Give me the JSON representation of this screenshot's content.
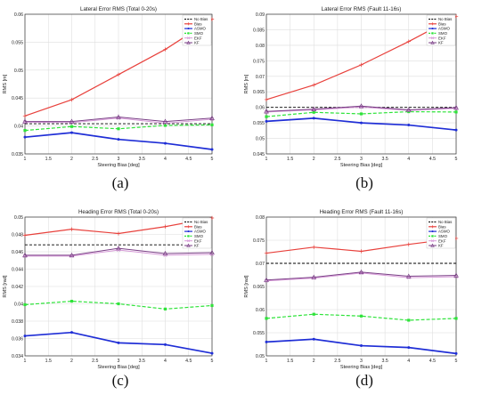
{
  "colors": {
    "No Bias": "#000000",
    "Bias": "#e8413c",
    "ASMO": "#1f2ed6",
    "SMO": "#2ee33a",
    "EKF": "#d79ad8",
    "KF": "#7a3f86"
  },
  "chart_data": [
    {
      "type": "line",
      "title": "Lateral Error RMS (Total 0-20s)",
      "xlabel": "Steering Bias [deg]",
      "ylabel": "RMS [m]",
      "xlim": [
        1,
        5
      ],
      "ylim": [
        0.035,
        0.06
      ],
      "xticks": [
        "1",
        "1.5",
        "2",
        "2.5",
        "3",
        "3.5",
        "4",
        "4.5",
        "5"
      ],
      "yticks": [
        "0.035",
        "0.04",
        "0.045",
        "0.05",
        "0.055",
        "0.06"
      ],
      "grid": true,
      "legend": "top-right",
      "label": "(a)",
      "x": [
        1,
        2,
        3,
        4,
        5
      ],
      "series": [
        {
          "name": "No Bias",
          "values": [
            0.0404,
            0.0404,
            0.0404,
            0.0404,
            0.0404
          ]
        },
        {
          "name": "Bias",
          "values": [
            0.0418,
            0.0447,
            0.0492,
            0.0537,
            0.0591
          ]
        },
        {
          "name": "ASMO",
          "values": [
            0.038,
            0.0388,
            0.0376,
            0.0369,
            0.0358
          ]
        },
        {
          "name": "SMO",
          "values": [
            0.0392,
            0.0399,
            0.0395,
            0.0401,
            0.0402
          ]
        },
        {
          "name": "EKF",
          "values": [
            0.0407,
            0.0406,
            0.0414,
            0.0405,
            0.0412
          ]
        },
        {
          "name": "KF",
          "values": [
            0.0408,
            0.0408,
            0.0416,
            0.0408,
            0.0414
          ]
        }
      ]
    },
    {
      "type": "line",
      "title": "Lateral Error RMS (Fault 11-16s)",
      "xlabel": "Steering Bias [deg]",
      "ylabel": "RMS [m]",
      "xlim": [
        1,
        5
      ],
      "ylim": [
        0.045,
        0.09
      ],
      "xticks": [
        "1",
        "1.5",
        "2",
        "2.5",
        "3",
        "3.5",
        "4",
        "4.5",
        "5"
      ],
      "yticks": [
        "0.045",
        "0.05",
        "0.055",
        "0.06",
        "0.065",
        "0.07",
        "0.075",
        "0.08",
        "0.085",
        "0.09"
      ],
      "grid": true,
      "legend": "top-right",
      "label": "(b)",
      "x": [
        1,
        2,
        3,
        4,
        5
      ],
      "series": [
        {
          "name": "No Bias",
          "values": [
            0.06,
            0.06,
            0.06,
            0.06,
            0.06
          ]
        },
        {
          "name": "Bias",
          "values": [
            0.0625,
            0.0672,
            0.0737,
            0.0812,
            0.0893
          ]
        },
        {
          "name": "ASMO",
          "values": [
            0.0555,
            0.0565,
            0.055,
            0.0543,
            0.0527
          ]
        },
        {
          "name": "SMO",
          "values": [
            0.057,
            0.0584,
            0.0579,
            0.0586,
            0.0585
          ]
        },
        {
          "name": "EKF",
          "values": [
            0.0585,
            0.0592,
            0.0601,
            0.059,
            0.0597
          ]
        },
        {
          "name": "KF",
          "values": [
            0.0587,
            0.0594,
            0.0604,
            0.0592,
            0.0599
          ]
        }
      ]
    },
    {
      "type": "line",
      "title": "Heading Error RMS (Total 0-20s)",
      "xlabel": "Steering Bias [deg]",
      "ylabel": "RMS [rad]",
      "xlim": [
        1,
        5
      ],
      "ylim": [
        0.034,
        0.05
      ],
      "xticks": [
        "1",
        "1.5",
        "2",
        "2.5",
        "3",
        "3.5",
        "4",
        "4.5",
        "5"
      ],
      "yticks": [
        "0.034",
        "0.036",
        "0.038",
        "0.04",
        "0.042",
        "0.044",
        "0.046",
        "0.048",
        "0.05"
      ],
      "grid": true,
      "legend": "top-right",
      "label": "(c)",
      "x": [
        1,
        2,
        3,
        4,
        5
      ],
      "series": [
        {
          "name": "No Bias",
          "values": [
            0.0468,
            0.0468,
            0.0468,
            0.0468,
            0.0468
          ]
        },
        {
          "name": "Bias",
          "values": [
            0.0479,
            0.0486,
            0.0481,
            0.0489,
            0.0499
          ]
        },
        {
          "name": "ASMO",
          "values": [
            0.0363,
            0.0367,
            0.0355,
            0.0353,
            0.0343
          ]
        },
        {
          "name": "SMO",
          "values": [
            0.0399,
            0.0403,
            0.04,
            0.0394,
            0.0398
          ]
        },
        {
          "name": "EKF",
          "values": [
            0.0455,
            0.0455,
            0.0462,
            0.0456,
            0.0457
          ]
        },
        {
          "name": "KF",
          "values": [
            0.0456,
            0.0456,
            0.0464,
            0.0458,
            0.0459
          ]
        }
      ]
    },
    {
      "type": "line",
      "title": "Heading Error RMS (Fault 11-16s)",
      "xlabel": "Steering Bias [deg]",
      "ylabel": "RMS [rad]",
      "xlim": [
        1,
        5
      ],
      "ylim": [
        0.05,
        0.08
      ],
      "xticks": [
        "1",
        "1.5",
        "2",
        "2.5",
        "3",
        "3.5",
        "4",
        "4.5",
        "5"
      ],
      "yticks": [
        "0.05",
        "0.055",
        "0.06",
        "0.065",
        "0.07",
        "0.075",
        "0.08"
      ],
      "grid": true,
      "legend": "top-right",
      "label": "(d)",
      "x": [
        1,
        2,
        3,
        4,
        5
      ],
      "series": [
        {
          "name": "No Bias",
          "values": [
            0.07,
            0.07,
            0.07,
            0.07,
            0.07
          ]
        },
        {
          "name": "Bias",
          "values": [
            0.0722,
            0.0735,
            0.0726,
            0.0741,
            0.0754
          ]
        },
        {
          "name": "ASMO",
          "values": [
            0.053,
            0.0536,
            0.0522,
            0.0518,
            0.0505
          ]
        },
        {
          "name": "SMO",
          "values": [
            0.0581,
            0.059,
            0.0586,
            0.0577,
            0.0581
          ]
        },
        {
          "name": "EKF",
          "values": [
            0.0662,
            0.0668,
            0.0679,
            0.0669,
            0.0671
          ]
        },
        {
          "name": "KF",
          "values": [
            0.0664,
            0.067,
            0.0681,
            0.0672,
            0.0674
          ]
        }
      ]
    }
  ]
}
